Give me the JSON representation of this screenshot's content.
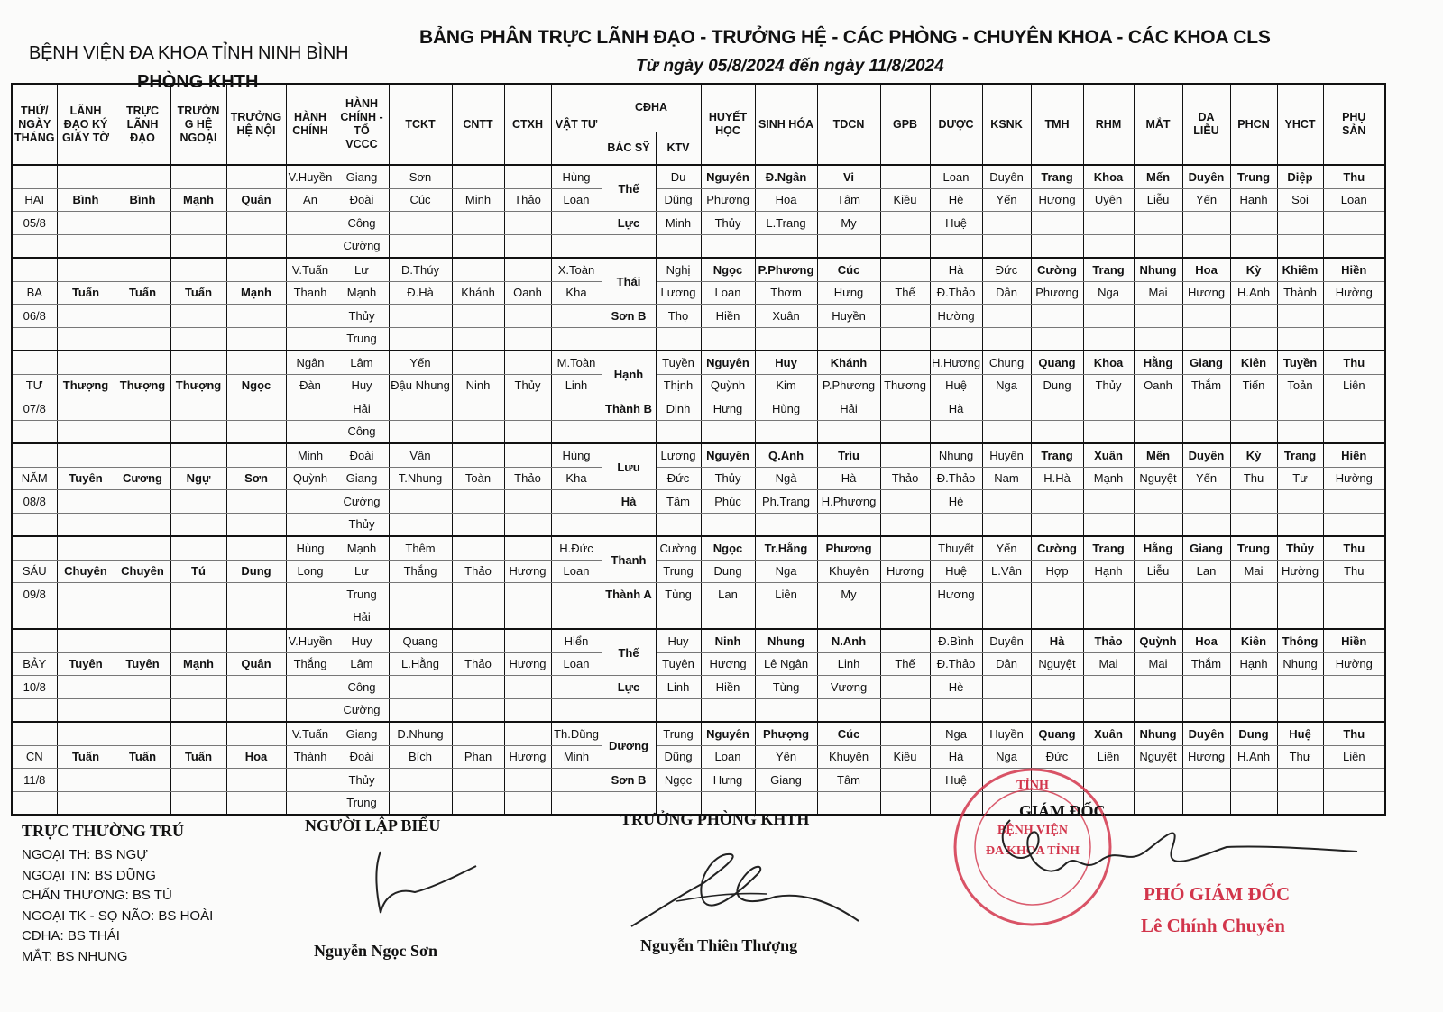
{
  "header": {
    "hospital": "BỆNH VIỆN ĐA KHOA TỈNH NINH BÌNH",
    "department": "PHÒNG KHTH",
    "title": "BẢNG PHÂN TRỰC LÃNH ĐẠO - TRƯỞNG HỆ - CÁC PHÒNG - CHUYÊN KHOA - CÁC KHOA CLS",
    "subtitle": "Từ ngày 05/8/2024 đến ngày 11/8/2024"
  },
  "table": {
    "columns": [
      "THỨ/\nNGÀY\nTHÁNG",
      "LÃNH\nĐẠO KÝ\nGIẤY TỜ",
      "TRỰC\nLÃNH\nĐẠO",
      "TRƯỞN\nG HỆ\nNGOẠI",
      "TRƯỞNG\nHỆ NỘI",
      "HÀNH\nCHÍNH",
      "HÀNH\nCHÍNH -\nTỔ\nVCCC",
      "TCKT",
      "CNTT",
      "CTXH",
      "VẬT TƯ",
      "HUYẾT\nHỌC",
      "SINH HÓA",
      "TDCN",
      "GPB",
      "DƯỢC",
      "KSNK",
      "TMH",
      "RHM",
      "MẮT",
      "DA\nLIỄU",
      "PHCN",
      "YHCT",
      "PHỤ\nSẢN"
    ],
    "cdha_group": "CĐHA",
    "cdha_sub": [
      "BÁC SỸ",
      "KTV"
    ],
    "days": [
      {
        "day": "HAI",
        "date": "05/8",
        "ky": "Bình",
        "truc": "Bình",
        "ngoai": "Mạnh",
        "noi": "Quân",
        "hc": [
          "V.Huyền",
          "An"
        ],
        "vccc": [
          "Giang",
          "Đoài",
          "Công",
          "Cường"
        ],
        "tckt": [
          "Sơn",
          "Cúc"
        ],
        "cntt": "Minh",
        "ctxh": "Thảo",
        "vattu": [
          "Hùng",
          "Loan"
        ],
        "bs": [
          "Thế",
          "Lực"
        ],
        "ktv": [
          "Du",
          "Dũng",
          "Minh"
        ],
        "hh": [
          "Nguyên",
          "Phương",
          "Thủy"
        ],
        "sh": [
          "Đ.Ngân",
          "Hoa",
          "L.Trang"
        ],
        "tdcn": [
          "Vi",
          "Tâm",
          "My"
        ],
        "gpb": "Kiều",
        "duoc": [
          "Loan",
          "Hè",
          "Huệ"
        ],
        "ksnk": [
          "Duyên",
          "Yến"
        ],
        "tmh": [
          "Trang",
          "Hương"
        ],
        "rhm": [
          "Khoa",
          "Uyên"
        ],
        "mat": [
          "Mến",
          "Liễu"
        ],
        "dl": [
          "Duyên",
          "Yến"
        ],
        "phcn": [
          "Trung",
          "Hạnh"
        ],
        "yhct": [
          "Diệp",
          "Soi"
        ],
        "ps": [
          "Thu",
          "Loan"
        ]
      },
      {
        "day": "BA",
        "date": "06/8",
        "ky": "Tuấn",
        "truc": "Tuấn",
        "ngoai": "Tuấn",
        "noi": "Mạnh",
        "hc": [
          "V.Tuấn",
          "Thanh"
        ],
        "vccc": [
          "Lư",
          "Mạnh",
          "Thủy",
          "Trung"
        ],
        "tckt": [
          "D.Thúy",
          "Đ.Hà"
        ],
        "cntt": "Khánh",
        "ctxh": "Oanh",
        "vattu": [
          "X.Toàn",
          "Kha"
        ],
        "bs": [
          "Thái",
          "Sơn B"
        ],
        "ktv": [
          "Nghị",
          "Lương",
          "Thọ"
        ],
        "hh": [
          "Ngọc",
          "Loan",
          "Hiền"
        ],
        "sh": [
          "P.Phương",
          "Thơm",
          "Xuân"
        ],
        "tdcn": [
          "Cúc",
          "Hưng",
          "Huyền"
        ],
        "gpb": "Thế",
        "duoc": [
          "Hà",
          "Đ.Thảo",
          "Hường"
        ],
        "ksnk": [
          "Đức",
          "Dân"
        ],
        "tmh": [
          "Cường",
          "Phương"
        ],
        "rhm": [
          "Trang",
          "Nga"
        ],
        "mat": [
          "Nhung",
          "Mai"
        ],
        "dl": [
          "Hoa",
          "Hương"
        ],
        "phcn": [
          "Kỳ",
          "H.Anh"
        ],
        "yhct": [
          "Khiêm",
          "Thành"
        ],
        "ps": [
          "Hiền",
          "Hường"
        ]
      },
      {
        "day": "TƯ",
        "date": "07/8",
        "ky": "Thượng",
        "truc": "Thượng",
        "ngoai": "Thượng",
        "noi": "Ngọc",
        "hc": [
          "Ngân",
          "Đàn"
        ],
        "vccc": [
          "Lâm",
          "Huy",
          "Hải",
          "Công"
        ],
        "tckt": [
          "Yến",
          "Đậu Nhung"
        ],
        "cntt": "Ninh",
        "ctxh": "Thủy",
        "vattu": [
          "M.Toàn",
          "Linh"
        ],
        "bs": [
          "Hạnh",
          "Thành B"
        ],
        "ktv": [
          "Tuyền",
          "Thịnh",
          "Dinh"
        ],
        "hh": [
          "Nguyên",
          "Quỳnh",
          "Hưng"
        ],
        "sh": [
          "Huy",
          "Kim",
          "Hùng"
        ],
        "tdcn": [
          "Khánh",
          "P.Phương",
          "Hải"
        ],
        "gpb": "Thương",
        "duoc": [
          "H.Hương",
          "Huệ",
          "Hà"
        ],
        "ksnk": [
          "Chung",
          "Nga"
        ],
        "tmh": [
          "Quang",
          "Dung"
        ],
        "rhm": [
          "Khoa",
          "Thủy"
        ],
        "mat": [
          "Hằng",
          "Oanh"
        ],
        "dl": [
          "Giang",
          "Thắm"
        ],
        "phcn": [
          "Kiên",
          "Tiến"
        ],
        "yhct": [
          "Tuyền",
          "Toản"
        ],
        "ps": [
          "Thu",
          "Liên"
        ]
      },
      {
        "day": "NĂM",
        "date": "08/8",
        "ky": "Tuyên",
        "truc": "Cương",
        "ngoai": "Ngự",
        "noi": "Sơn",
        "hc": [
          "Minh",
          "Quỳnh"
        ],
        "vccc": [
          "Đoài",
          "Giang",
          "Cường",
          "Thủy"
        ],
        "tckt": [
          "Vân",
          "T.Nhung"
        ],
        "cntt": "Toàn",
        "ctxh": "Thảo",
        "vattu": [
          "Hùng",
          "Kha"
        ],
        "bs": [
          "Lưu",
          "Hà"
        ],
        "ktv": [
          "Lương",
          "Đức",
          "Tâm"
        ],
        "hh": [
          "Nguyên",
          "Thủy",
          "Phúc"
        ],
        "sh": [
          "Q.Anh",
          "Ngà",
          "Ph.Trang"
        ],
        "tdcn": [
          "Trìu",
          "Hà",
          "H.Phương"
        ],
        "gpb": "Thảo",
        "duoc": [
          "Nhung",
          "Đ.Thảo",
          "Hè"
        ],
        "ksnk": [
          "Huyền",
          "Nam"
        ],
        "tmh": [
          "Trang",
          "H.Hà"
        ],
        "rhm": [
          "Xuân",
          "Mạnh"
        ],
        "mat": [
          "Mến",
          "Nguyệt"
        ],
        "dl": [
          "Duyên",
          "Yến"
        ],
        "phcn": [
          "Kỳ",
          "Thu"
        ],
        "yhct": [
          "Trang",
          "Tư"
        ],
        "ps": [
          "Hiền",
          "Hường"
        ]
      },
      {
        "day": "SÁU",
        "date": "09/8",
        "ky": "Chuyên",
        "truc": "Chuyên",
        "ngoai": "Tú",
        "noi": "Dung",
        "hc": [
          "Hùng",
          "Long"
        ],
        "vccc": [
          "Mạnh",
          "Lư",
          "Trung",
          "Hải"
        ],
        "tckt": [
          "Thêm",
          "Thắng"
        ],
        "cntt": "Thảo",
        "ctxh": "Hương",
        "vattu": [
          "H.Đức",
          "Loan"
        ],
        "bs": [
          "Thanh",
          "Thành A"
        ],
        "ktv": [
          "Cường",
          "Trung",
          "Tùng"
        ],
        "hh": [
          "Ngọc",
          "Dung",
          "Lan"
        ],
        "sh": [
          "Tr.Hằng",
          "Nga",
          "Liên"
        ],
        "tdcn": [
          "Phương",
          "Khuyên",
          "My"
        ],
        "gpb": "Hương",
        "duoc": [
          "Thuyết",
          "Huệ",
          "Hương"
        ],
        "ksnk": [
          "Yến",
          "L.Vân"
        ],
        "tmh": [
          "Cường",
          "Hợp"
        ],
        "rhm": [
          "Trang",
          "Hạnh"
        ],
        "mat": [
          "Hằng",
          "Liễu"
        ],
        "dl": [
          "Giang",
          "Lan"
        ],
        "phcn": [
          "Trung",
          "Mai"
        ],
        "yhct": [
          "Thủy",
          "Hường"
        ],
        "ps": [
          "Thu",
          "Thu"
        ]
      },
      {
        "day": "BẢY",
        "date": "10/8",
        "ky": "Tuyên",
        "truc": "Tuyên",
        "ngoai": "Mạnh",
        "noi": "Quân",
        "hc": [
          "V.Huyền",
          "Thắng"
        ],
        "vccc": [
          "Huy",
          "Lâm",
          "Công",
          "Cường"
        ],
        "tckt": [
          "Quang",
          "L.Hằng"
        ],
        "cntt": "Thảo",
        "ctxh": "Hương",
        "vattu": [
          "Hiển",
          "Loan"
        ],
        "bs": [
          "Thế",
          "Lực"
        ],
        "ktv": [
          "Huy",
          "Tuyên",
          "Linh"
        ],
        "hh": [
          "Ninh",
          "Hương",
          "Hiền"
        ],
        "sh": [
          "Nhung",
          "Lê Ngân",
          "Tùng"
        ],
        "tdcn": [
          "N.Anh",
          "Linh",
          "Vương"
        ],
        "gpb": "Thế",
        "duoc": [
          "Đ.Bình",
          "Đ.Thảo",
          "Hè"
        ],
        "ksnk": [
          "Duyên",
          "Dân"
        ],
        "tmh": [
          "Hà",
          "Nguyệt"
        ],
        "rhm": [
          "Thảo",
          "Mai"
        ],
        "mat": [
          "Quỳnh",
          "Mai"
        ],
        "dl": [
          "Hoa",
          "Thắm"
        ],
        "phcn": [
          "Kiên",
          "Hạnh"
        ],
        "yhct": [
          "Thông",
          "Nhung"
        ],
        "ps": [
          "Hiền",
          "Hường"
        ]
      },
      {
        "day": "CN",
        "date": "11/8",
        "ky": "Tuấn",
        "truc": "Tuấn",
        "ngoai": "Tuấn",
        "noi": "Hoa",
        "hc": [
          "V.Tuấn",
          "Thành"
        ],
        "vccc": [
          "Giang",
          "Đoài",
          "Thủy",
          "Trung"
        ],
        "tckt": [
          "Đ.Nhung",
          "Bích"
        ],
        "cntt": "Phan",
        "ctxh": "Hương",
        "vattu": [
          "Th.Dũng",
          "Minh"
        ],
        "bs": [
          "Dương",
          "Sơn B"
        ],
        "ktv": [
          "Trung",
          "Dũng",
          "Ngọc"
        ],
        "hh": [
          "Nguyên",
          "Loan",
          "Hưng"
        ],
        "sh": [
          "Phượng",
          "Yến",
          "Giang"
        ],
        "tdcn": [
          "Cúc",
          "Khuyên",
          "Tâm"
        ],
        "gpb": "Kiều",
        "duoc": [
          "Nga",
          "Hà",
          "Huệ"
        ],
        "ksnk": [
          "Huyền",
          "Nga"
        ],
        "tmh": [
          "Quang",
          "Đức"
        ],
        "rhm": [
          "Xuân",
          "Liên"
        ],
        "mat": [
          "Nhung",
          "Nguyệt"
        ],
        "dl": [
          "Duyên",
          "Hương"
        ],
        "phcn": [
          "Dung",
          "H.Anh"
        ],
        "yhct": [
          "Huệ",
          "Thư"
        ],
        "ps": [
          "Thu",
          "Liên"
        ]
      }
    ]
  },
  "footer": {
    "resident_title": "TRỰC THƯỜNG TRÚ",
    "resident_lines": [
      "NGOẠI TH: BS NGỰ",
      "NGOẠI TN: BS DŨNG",
      "CHẤN THƯƠNG: BS TÚ",
      "NGOẠI TK - SỌ NÃO: BS HOÀI",
      "CĐHA: BS THÁI",
      "MẮT: BS NHUNG"
    ],
    "preparer_title": "NGƯỜI LẬP BIỂU",
    "preparer_name": "Nguyễn Ngọc Sơn",
    "head_title": "TRƯỞNG PHÒNG KHTH",
    "head_name": "Nguyễn Thiên Thượng",
    "director_title": "GIÁM ĐỐC",
    "deputy_title": "PHÓ GIÁM ĐỐC",
    "deputy_name": "Lê Chính Chuyên",
    "stamp_text": "BỆNH VIỆN ĐA KHOA TỈNH",
    "stamp_color": "#d2354b"
  }
}
